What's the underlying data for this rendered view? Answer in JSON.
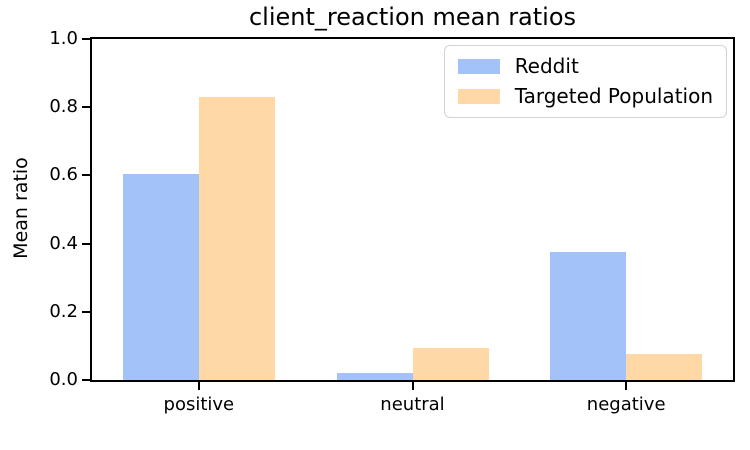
{
  "figure": {
    "background": "#ffffff",
    "axis_color": "#000000",
    "text_color": "#000000"
  },
  "chart_data": {
    "type": "bar",
    "title": "client_reaction mean ratios",
    "xlabel": "",
    "ylabel": "Mean ratio",
    "categories": [
      "positive",
      "neutral",
      "negative"
    ],
    "series": [
      {
        "name": "Reddit",
        "color": "#a3c2fa",
        "values": [
          0.605,
          0.02,
          0.375
        ]
      },
      {
        "name": "Targeted Population",
        "color": "#ffd8a6",
        "values": [
          0.83,
          0.095,
          0.075
        ]
      }
    ],
    "ylim": [
      0.0,
      1.0
    ],
    "yticks": [
      0.0,
      0.2,
      0.4,
      0.6,
      0.8,
      1.0
    ],
    "ytick_labels": [
      "0.0",
      "0.2",
      "0.4",
      "0.6",
      "0.8",
      "1.0"
    ],
    "grid": false,
    "legend": {
      "position": "upper-right",
      "border_color": "#d3d3d3",
      "background": "#ffffff"
    }
  }
}
